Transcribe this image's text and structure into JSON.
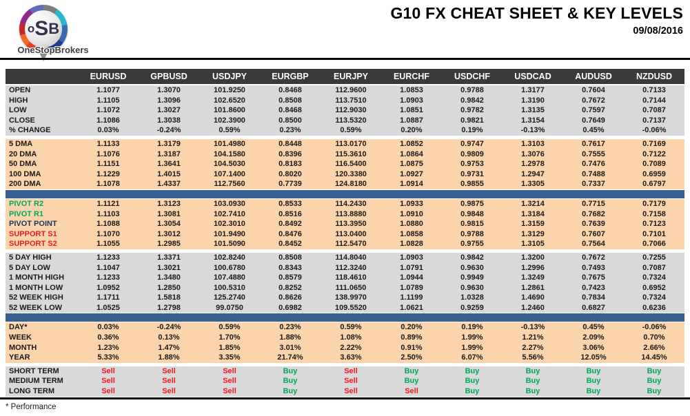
{
  "logo": {
    "osb_o": "o",
    "osb_s": "S",
    "osb_b": "B",
    "brand": "OneStopBrokers"
  },
  "header": {
    "title": "G10 FX CHEAT SHEET & KEY LEVELS",
    "date": "09/08/2016"
  },
  "footnote": "* Performance",
  "colors": {
    "header_bg": "#3A3A3A",
    "section_gray": "#D9D9D9",
    "section_peach": "#FBD4AC",
    "divider_blue": "#376091",
    "buy_green": "#00A859",
    "sell_red": "#EE1C25",
    "pivot_navy": "#17375E",
    "text_dark": "#1A1A1A"
  },
  "table": {
    "columns": [
      "EURUSD",
      "GPBUSD",
      "USDJPY",
      "EURGBP",
      "EURJPY",
      "EURCHF",
      "USDCHF",
      "USDCAD",
      "AUDUSD",
      "NZDUSD"
    ],
    "sections": [
      {
        "type": "section",
        "bg": "gray",
        "kind": "values",
        "rows": [
          {
            "label": "OPEN",
            "values": [
              "1.1077",
              "1.3070",
              "101.9250",
              "0.8468",
              "112.9600",
              "1.0853",
              "0.9788",
              "1.3177",
              "0.7604",
              "0.7133"
            ]
          },
          {
            "label": "HIGH",
            "values": [
              "1.1105",
              "1.3096",
              "102.6520",
              "0.8508",
              "113.7510",
              "1.0903",
              "0.9842",
              "1.3190",
              "0.7672",
              "0.7144"
            ]
          },
          {
            "label": "LOW",
            "values": [
              "1.1072",
              "1.3027",
              "101.8600",
              "0.8468",
              "112.9030",
              "1.0851",
              "0.9782",
              "1.3135",
              "0.7597",
              "0.7087"
            ]
          },
          {
            "label": "CLOSE",
            "values": [
              "1.1086",
              "1.3038",
              "102.3900",
              "0.8500",
              "113.5320",
              "1.0887",
              "0.9821",
              "1.3154",
              "0.7649",
              "0.7137"
            ]
          },
          {
            "label": "% CHANGE",
            "values": [
              "0.03%",
              "-0.24%",
              "0.59%",
              "0.23%",
              "0.59%",
              "0.20%",
              "0.19%",
              "-0.13%",
              "0.45%",
              "-0.06%"
            ]
          }
        ]
      },
      {
        "type": "gap"
      },
      {
        "type": "section",
        "bg": "peach",
        "kind": "values",
        "rows": [
          {
            "label": "5 DMA",
            "values": [
              "1.1133",
              "1.3179",
              "101.4980",
              "0.8448",
              "113.0170",
              "1.0852",
              "0.9747",
              "1.3103",
              "0.7617",
              "0.7169"
            ]
          },
          {
            "label": "20 DMA",
            "values": [
              "1.1076",
              "1.3187",
              "104.1580",
              "0.8396",
              "115.3610",
              "1.0864",
              "0.9809",
              "1.3076",
              "0.7555",
              "0.7122"
            ]
          },
          {
            "label": "50 DMA",
            "values": [
              "1.1151",
              "1.3641",
              "104.5030",
              "0.8183",
              "116.5400",
              "1.0875",
              "0.9753",
              "1.2978",
              "0.7476",
              "0.7089"
            ]
          },
          {
            "label": "100 DMA",
            "values": [
              "1.1229",
              "1.4015",
              "107.1400",
              "0.8020",
              "120.3380",
              "1.0927",
              "0.9731",
              "1.2947",
              "0.7488",
              "0.6959"
            ]
          },
          {
            "label": "200 DMA",
            "values": [
              "1.1078",
              "1.4337",
              "112.7560",
              "0.7739",
              "124.8180",
              "1.0914",
              "0.9855",
              "1.3305",
              "0.7337",
              "0.6797"
            ]
          }
        ]
      },
      {
        "type": "divider"
      },
      {
        "type": "section",
        "bg": "peach",
        "kind": "values",
        "rows": [
          {
            "label": "PIVOT R2",
            "labelColor": "green",
            "values": [
              "1.1121",
              "1.3123",
              "103.0930",
              "0.8533",
              "114.2430",
              "1.0933",
              "0.9875",
              "1.3214",
              "0.7715",
              "0.7179"
            ]
          },
          {
            "label": "PIVOT R1",
            "labelColor": "green",
            "values": [
              "1.1103",
              "1.3081",
              "102.7410",
              "0.8516",
              "113.8880",
              "1.0910",
              "0.9848",
              "1.3184",
              "0.7682",
              "0.7158"
            ]
          },
          {
            "label": "PIVOT POINT",
            "labelColor": "navy",
            "values": [
              "1.1088",
              "1.3054",
              "102.3010",
              "0.8492",
              "113.3950",
              "1.0880",
              "0.9815",
              "1.3159",
              "0.7639",
              "0.7123"
            ]
          },
          {
            "label": "SUPPORT S1",
            "labelColor": "red",
            "values": [
              "1.1070",
              "1.3012",
              "101.9490",
              "0.8476",
              "113.0400",
              "1.0858",
              "0.9788",
              "1.3129",
              "0.7607",
              "0.7101"
            ]
          },
          {
            "label": "SUPPORT S2",
            "labelColor": "red",
            "values": [
              "1.1055",
              "1.2985",
              "101.5090",
              "0.8452",
              "112.5470",
              "1.0828",
              "0.9755",
              "1.3105",
              "0.7564",
              "0.7066"
            ]
          }
        ]
      },
      {
        "type": "gap"
      },
      {
        "type": "section",
        "bg": "gray",
        "kind": "values",
        "rows": [
          {
            "label": "5 DAY HIGH",
            "values": [
              "1.1233",
              "1.3371",
              "102.8240",
              "0.8508",
              "114.8040",
              "1.0903",
              "0.9842",
              "1.3200",
              "0.7672",
              "0.7255"
            ]
          },
          {
            "label": "5 DAY LOW",
            "values": [
              "1.1047",
              "1.3021",
              "100.6780",
              "0.8343",
              "112.3240",
              "1.0791",
              "0.9630",
              "1.2996",
              "0.7493",
              "0.7087"
            ]
          },
          {
            "label": "1 MONTH HIGH",
            "values": [
              "1.1233",
              "1.3480",
              "107.4880",
              "0.8579",
              "118.4610",
              "1.0944",
              "0.9949",
              "1.3249",
              "0.7675",
              "0.7324"
            ]
          },
          {
            "label": "1 MONTH LOW",
            "values": [
              "1.0952",
              "1.2850",
              "100.5310",
              "0.8252",
              "111.0650",
              "1.0789",
              "0.9630",
              "1.2861",
              "0.7423",
              "0.6952"
            ]
          },
          {
            "label": "52 WEEK HIGH",
            "values": [
              "1.1711",
              "1.5818",
              "125.2740",
              "0.8626",
              "138.9970",
              "1.1199",
              "1.0328",
              "1.4690",
              "0.7834",
              "0.7324"
            ]
          },
          {
            "label": "52 WEEK LOW",
            "values": [
              "1.0525",
              "1.2798",
              "99.0750",
              "0.6982",
              "109.5520",
              "1.0621",
              "0.9259",
              "1.2460",
              "0.6827",
              "0.6236"
            ]
          }
        ]
      },
      {
        "type": "divider"
      },
      {
        "type": "section",
        "bg": "peach",
        "kind": "values",
        "rows": [
          {
            "label": "DAY*",
            "values": [
              "0.03%",
              "-0.24%",
              "0.59%",
              "0.23%",
              "0.59%",
              "0.20%",
              "0.19%",
              "-0.13%",
              "0.45%",
              "-0.06%"
            ]
          },
          {
            "label": "WEEK",
            "values": [
              "0.36%",
              "0.13%",
              "1.70%",
              "1.88%",
              "1.08%",
              "0.89%",
              "1.99%",
              "1.21%",
              "2.09%",
              "0.70%"
            ]
          },
          {
            "label": "MONTH",
            "values": [
              "1.23%",
              "1.47%",
              "1.85%",
              "3.01%",
              "2.22%",
              "0.91%",
              "1.99%",
              "2.27%",
              "3.06%",
              "2.66%"
            ]
          },
          {
            "label": "YEAR",
            "values": [
              "5.33%",
              "1.88%",
              "3.35%",
              "21.74%",
              "3.63%",
              "2.50%",
              "6.07%",
              "5.56%",
              "12.05%",
              "14.45%"
            ]
          }
        ]
      },
      {
        "type": "gap"
      },
      {
        "type": "section",
        "bg": "gray",
        "kind": "signals",
        "rows": [
          {
            "label": "SHORT TERM",
            "values": [
              "Sell",
              "Sell",
              "Sell",
              "Buy",
              "Sell",
              "Buy",
              "Buy",
              "Buy",
              "Buy",
              "Buy"
            ]
          },
          {
            "label": "MEDIUM TERM",
            "values": [
              "Sell",
              "Sell",
              "Sell",
              "Buy",
              "Sell",
              "Buy",
              "Buy",
              "Buy",
              "Buy",
              "Buy"
            ]
          },
          {
            "label": "LONG TERM",
            "values": [
              "Sell",
              "Sell",
              "Sell",
              "Buy",
              "Sell",
              "Sell",
              "Buy",
              "Buy",
              "Buy",
              "Buy"
            ]
          }
        ]
      }
    ]
  }
}
